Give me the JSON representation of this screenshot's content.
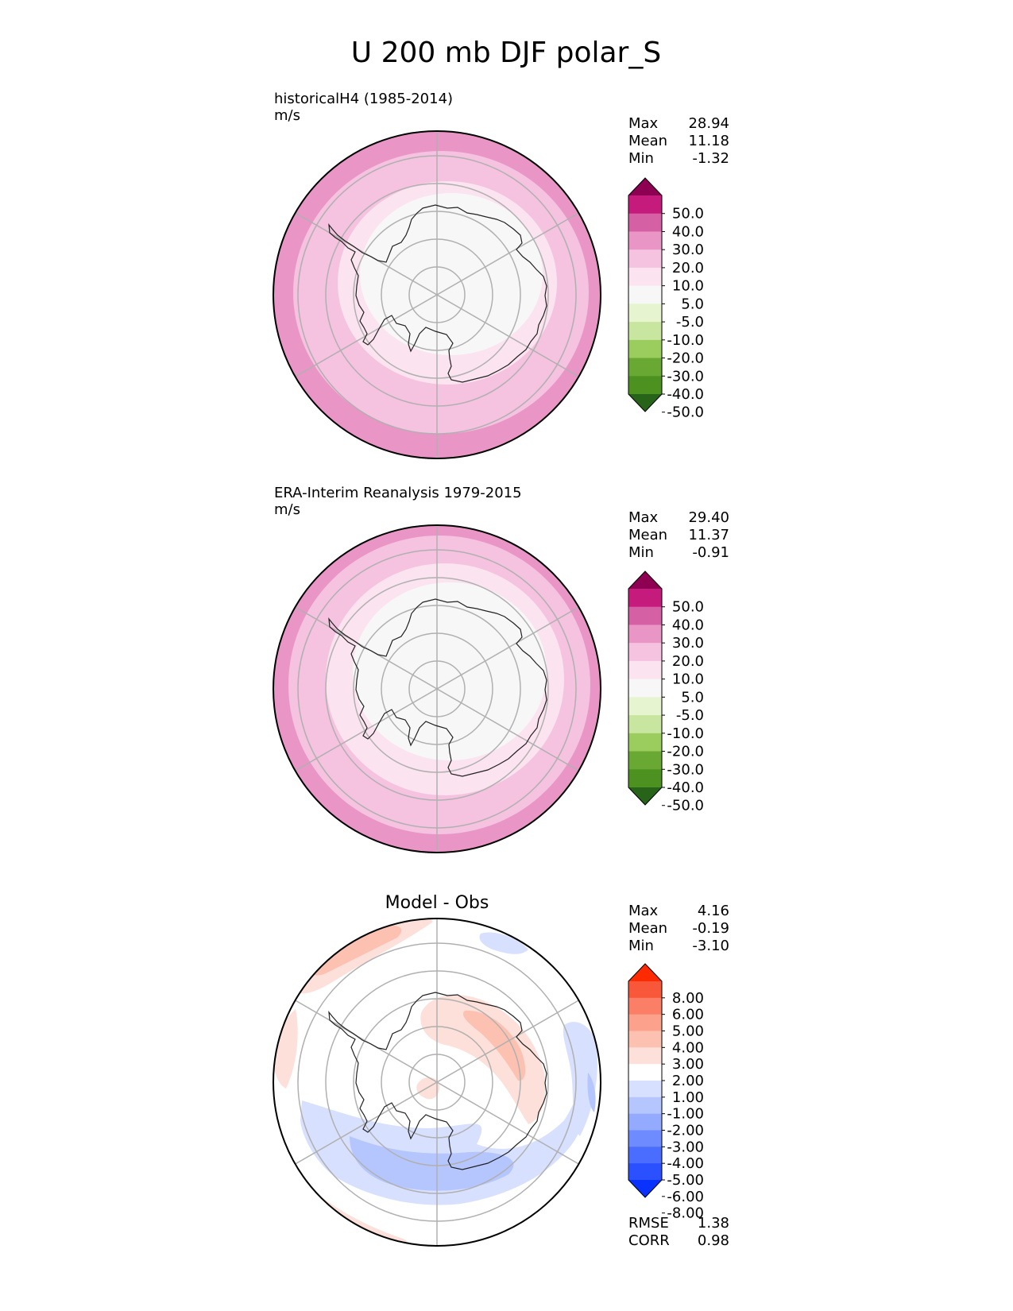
{
  "title": "U 200 mb DJF polar_S",
  "colors": {
    "coastline": "#222222",
    "grid": "#b0b0b0",
    "field_scale": [
      "#276419",
      "#4d9221",
      "#6aa834",
      "#9bcd5e",
      "#c8e6a0",
      "#e6f5d0",
      "#f7f7f7",
      "#fbe3ef",
      "#f5c2e0",
      "#e996c7",
      "#d560a3",
      "#c51b7d",
      "#8e0152"
    ],
    "diff_scale": [
      "#0a32ff",
      "#2a50ff",
      "#4a6cff",
      "#6e8cff",
      "#93aaff",
      "#b5c6ff",
      "#d8e0ff",
      "#ffffff",
      "#fde0d9",
      "#fcc1b1",
      "#fca28c",
      "#fb7f66",
      "#f9573a",
      "#ff2a00"
    ]
  },
  "chart_data": [
    {
      "type": "heatmap",
      "projection": "polar-south",
      "title": "historicalH4 (1985-2014)",
      "units": "m/s",
      "stats": [
        {
          "label": "Max",
          "value": "28.94"
        },
        {
          "label": "Mean",
          "value": "11.18"
        },
        {
          "label": "Min",
          "value": "-1.32"
        }
      ],
      "colorbar_ticks": [
        "50.0",
        "40.0",
        "30.0",
        "20.0",
        "10.0",
        "5.0",
        "-5.0",
        "-10.0",
        "-20.0",
        "-30.0",
        "-40.0",
        "-50.0"
      ],
      "field_levels": [
        {
          "lat_outer": -50,
          "lat_inner": -55,
          "value": 25
        },
        {
          "lat_outer": -55,
          "lat_inner": -63,
          "value": 15
        },
        {
          "lat_outer": -63,
          "lat_inner": -70,
          "value": 7
        },
        {
          "lat_outer": -70,
          "lat_inner": -90,
          "value": 0
        }
      ]
    },
    {
      "type": "heatmap",
      "projection": "polar-south",
      "title": "ERA-Interim Reanalysis 1979-2015",
      "units": "m/s",
      "stats": [
        {
          "label": "Max",
          "value": "29.40"
        },
        {
          "label": "Mean",
          "value": "11.37"
        },
        {
          "label": "Min",
          "value": "-0.91"
        }
      ],
      "colorbar_ticks": [
        "50.0",
        "40.0",
        "30.0",
        "20.0",
        "10.0",
        "5.0",
        "-5.0",
        "-10.0",
        "-20.0",
        "-30.0",
        "-40.0",
        "-50.0"
      ],
      "field_levels": [
        {
          "lat_outer": -50,
          "lat_inner": -54,
          "value": 25
        },
        {
          "lat_outer": -54,
          "lat_inner": -62,
          "value": 15
        },
        {
          "lat_outer": -62,
          "lat_inner": -69,
          "value": 7
        },
        {
          "lat_outer": -69,
          "lat_inner": -90,
          "value": 0
        }
      ]
    },
    {
      "type": "heatmap",
      "projection": "polar-south",
      "title": "Model - Obs",
      "stats": [
        {
          "label": "Max",
          "value": "4.16"
        },
        {
          "label": "Mean",
          "value": "-0.19"
        },
        {
          "label": "Min",
          "value": "-3.10"
        }
      ],
      "colorbar_ticks": [
        "8.00",
        "6.00",
        "5.00",
        "4.00",
        "3.00",
        "2.00",
        "1.00",
        "-1.00",
        "-2.00",
        "-3.00",
        "-4.00",
        "-5.00",
        "-6.00",
        "-8.00"
      ],
      "metrics": [
        {
          "label": "RMSE",
          "value": "1.38"
        },
        {
          "label": "CORR",
          "value": "0.98"
        }
      ]
    }
  ]
}
